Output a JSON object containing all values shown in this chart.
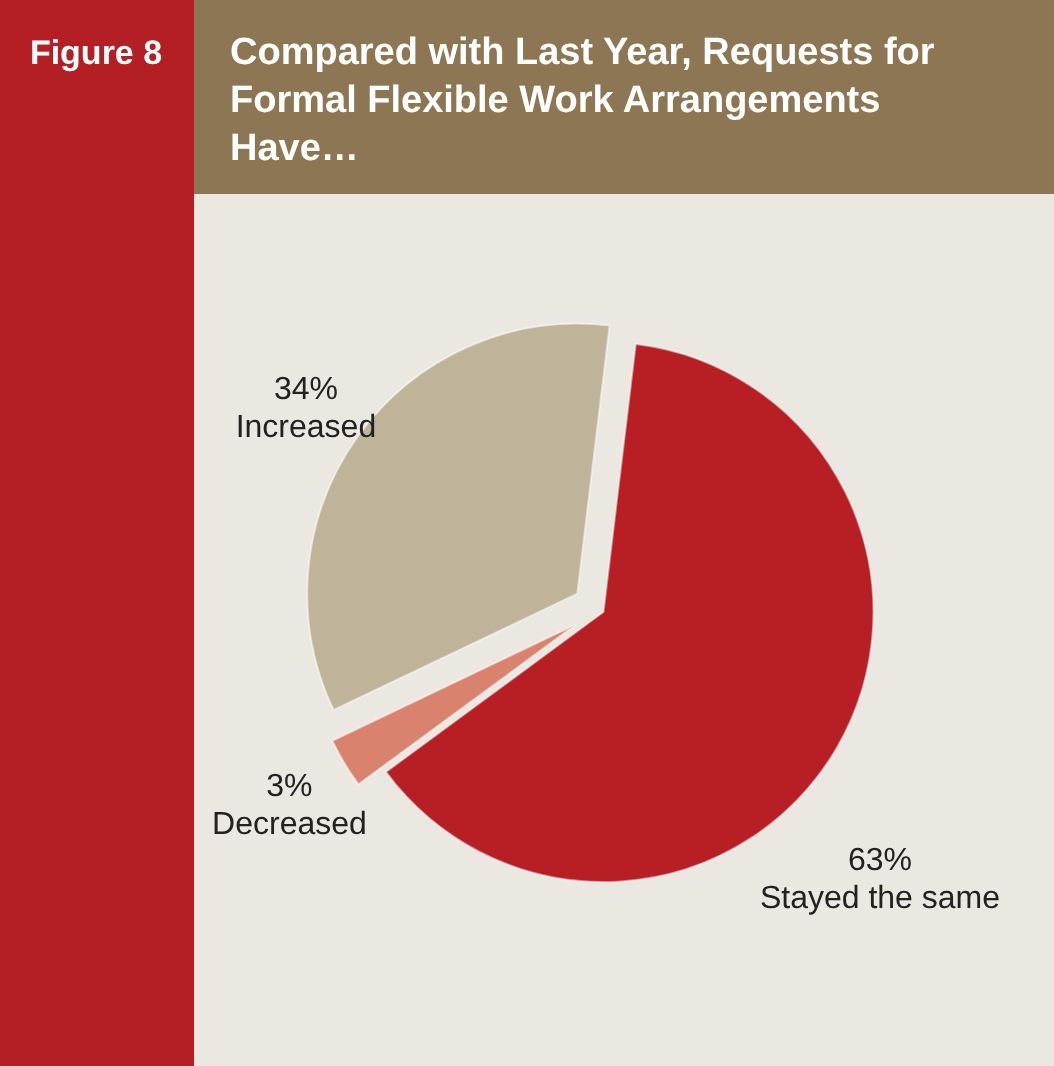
{
  "chart_data": {
    "type": "pie",
    "title": "Compared with Last Year, Requests for Formal Flexible Work Arrangements Have…",
    "annotations": [
      "Figure 8"
    ],
    "categories": [
      "Stayed the same",
      "Decreased",
      "Increased"
    ],
    "values": [
      63,
      3,
      34
    ],
    "colors": [
      "#b81f25",
      "#d9826e",
      "#bfb39a"
    ],
    "value_labels": [
      "63%",
      "3%",
      "34%"
    ]
  }
}
